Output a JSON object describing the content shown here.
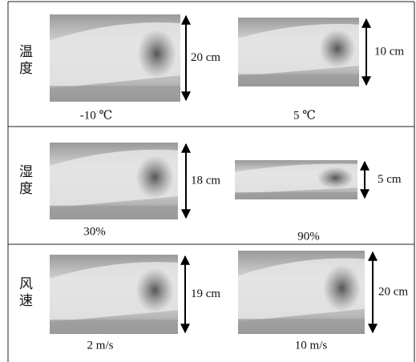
{
  "rows": [
    {
      "label": "温度",
      "cells": [
        {
          "height": "20 cm",
          "caption": "-10 ℃"
        },
        {
          "height": "10 cm",
          "caption": "5 ℃"
        }
      ]
    },
    {
      "label": "湿度",
      "cells": [
        {
          "height": "18 cm",
          "caption": "30%"
        },
        {
          "height": "5 cm",
          "caption": "90%"
        }
      ]
    },
    {
      "label": "风速",
      "cells": [
        {
          "height": "19 cm",
          "caption": "2 m/s"
        },
        {
          "height": "20 cm",
          "caption": "10 m/s"
        }
      ]
    }
  ]
}
